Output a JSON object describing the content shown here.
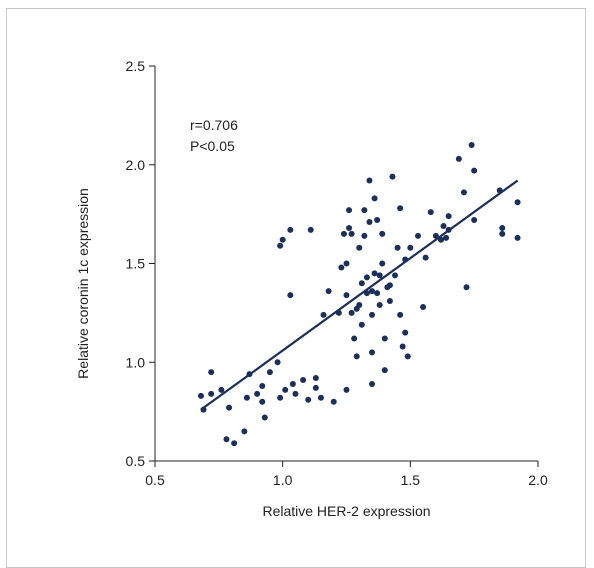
{
  "chart_data": {
    "type": "scatter",
    "xlabel": "Relative HER-2 expression",
    "ylabel": "Relative coronin 1c expression",
    "xlim": [
      0.5,
      2.0
    ],
    "ylim": [
      0.5,
      2.5
    ],
    "xticks": [
      "0.5",
      "1.0",
      "1.5",
      "2.0"
    ],
    "yticks": [
      "0.5",
      "1.0",
      "1.5",
      "2.0",
      "2.5"
    ],
    "annotations": [
      "r=0.706",
      "P<0.05"
    ],
    "point_color": "#1a2f5a",
    "line_color": "#1a2f5a",
    "fit_line": {
      "x": [
        0.68,
        1.92
      ],
      "y": [
        0.76,
        1.92
      ]
    },
    "points": [
      [
        0.68,
        0.83
      ],
      [
        0.69,
        0.76
      ],
      [
        0.72,
        0.84
      ],
      [
        0.72,
        0.95
      ],
      [
        0.76,
        0.86
      ],
      [
        0.78,
        0.61
      ],
      [
        0.79,
        0.77
      ],
      [
        0.81,
        0.59
      ],
      [
        0.85,
        0.65
      ],
      [
        0.86,
        0.82
      ],
      [
        0.87,
        0.94
      ],
      [
        0.9,
        0.84
      ],
      [
        0.92,
        0.8
      ],
      [
        0.92,
        0.88
      ],
      [
        0.93,
        0.72
      ],
      [
        0.95,
        0.95
      ],
      [
        0.98,
        1.0
      ],
      [
        0.99,
        0.82
      ],
      [
        0.99,
        1.59
      ],
      [
        1.0,
        1.62
      ],
      [
        1.01,
        0.86
      ],
      [
        1.03,
        1.67
      ],
      [
        1.03,
        1.34
      ],
      [
        1.04,
        0.89
      ],
      [
        1.05,
        0.84
      ],
      [
        1.08,
        0.91
      ],
      [
        1.1,
        0.81
      ],
      [
        1.11,
        1.67
      ],
      [
        1.13,
        0.87
      ],
      [
        1.13,
        0.92
      ],
      [
        1.15,
        0.82
      ],
      [
        1.16,
        1.24
      ],
      [
        1.18,
        1.36
      ],
      [
        1.2,
        0.8
      ],
      [
        1.22,
        1.25
      ],
      [
        1.23,
        1.48
      ],
      [
        1.24,
        1.65
      ],
      [
        1.25,
        1.5
      ],
      [
        1.25,
        1.34
      ],
      [
        1.25,
        0.86
      ],
      [
        1.26,
        1.77
      ],
      [
        1.26,
        1.68
      ],
      [
        1.27,
        1.65
      ],
      [
        1.27,
        1.25
      ],
      [
        1.28,
        1.12
      ],
      [
        1.29,
        1.03
      ],
      [
        1.29,
        1.27
      ],
      [
        1.3,
        1.58
      ],
      [
        1.3,
        1.29
      ],
      [
        1.31,
        1.19
      ],
      [
        1.31,
        1.4
      ],
      [
        1.32,
        1.77
      ],
      [
        1.32,
        1.64
      ],
      [
        1.33,
        1.43
      ],
      [
        1.33,
        1.35
      ],
      [
        1.34,
        1.92
      ],
      [
        1.34,
        1.71
      ],
      [
        1.35,
        1.24
      ],
      [
        1.35,
        1.36
      ],
      [
        1.35,
        0.89
      ],
      [
        1.35,
        1.05
      ],
      [
        1.36,
        1.83
      ],
      [
        1.36,
        1.45
      ],
      [
        1.37,
        1.72
      ],
      [
        1.37,
        1.35
      ],
      [
        1.38,
        1.44
      ],
      [
        1.38,
        1.29
      ],
      [
        1.39,
        1.65
      ],
      [
        1.39,
        1.5
      ],
      [
        1.4,
        0.96
      ],
      [
        1.4,
        1.12
      ],
      [
        1.41,
        1.38
      ],
      [
        1.42,
        1.39
      ],
      [
        1.42,
        1.31
      ],
      [
        1.43,
        1.94
      ],
      [
        1.44,
        1.44
      ],
      [
        1.45,
        1.58
      ],
      [
        1.46,
        1.78
      ],
      [
        1.46,
        1.24
      ],
      [
        1.47,
        1.08
      ],
      [
        1.48,
        1.15
      ],
      [
        1.48,
        1.52
      ],
      [
        1.49,
        1.03
      ],
      [
        1.5,
        1.58
      ],
      [
        1.53,
        1.64
      ],
      [
        1.55,
        1.28
      ],
      [
        1.56,
        1.53
      ],
      [
        1.58,
        1.76
      ],
      [
        1.6,
        1.64
      ],
      [
        1.62,
        1.62
      ],
      [
        1.63,
        1.69
      ],
      [
        1.64,
        1.63
      ],
      [
        1.65,
        1.74
      ],
      [
        1.65,
        1.67
      ],
      [
        1.69,
        2.03
      ],
      [
        1.71,
        1.86
      ],
      [
        1.72,
        1.38
      ],
      [
        1.74,
        2.1
      ],
      [
        1.75,
        1.97
      ],
      [
        1.75,
        1.72
      ],
      [
        1.85,
        1.87
      ],
      [
        1.86,
        1.68
      ],
      [
        1.86,
        1.65
      ],
      [
        1.92,
        1.81
      ],
      [
        1.92,
        1.63
      ]
    ]
  }
}
